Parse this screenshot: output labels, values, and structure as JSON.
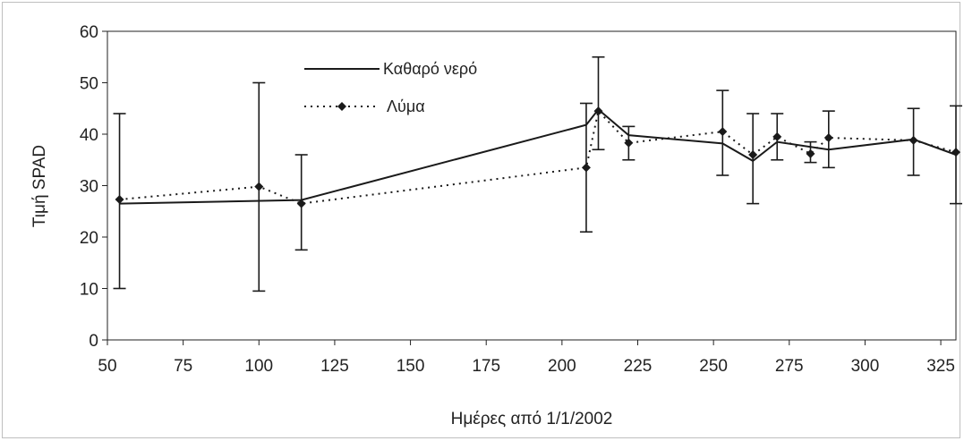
{
  "chart_data": {
    "type": "line",
    "title": "",
    "xlabel": "Ημέρες από 1/1/2002",
    "ylabel": "Τιμή SPAD",
    "xlim": [
      50,
      330
    ],
    "ylim": [
      0,
      60
    ],
    "x_ticks": [
      "50",
      "75",
      "100",
      "125",
      "150",
      "175",
      "200",
      "225",
      "250",
      "275",
      "300",
      "325"
    ],
    "y_ticks": [
      "0",
      "10",
      "20",
      "30",
      "40",
      "50",
      "60"
    ],
    "grid": false,
    "legend_position": "top-center",
    "series": [
      {
        "name": "Καθαρό νερό",
        "style": "solid",
        "color": "#1a1a1a",
        "x": [
          54,
          114,
          208,
          212,
          222,
          253,
          263,
          271,
          288,
          316,
          330
        ],
        "y": [
          26.5,
          27.2,
          41.8,
          44.8,
          39.8,
          38.2,
          34.8,
          38.5,
          37.0,
          39.0,
          36.0
        ]
      },
      {
        "name": "Λύμα",
        "style": "dotted",
        "marker": "diamond",
        "color": "#1a1a1a",
        "x": [
          54,
          100,
          114,
          208,
          212,
          222,
          253,
          263,
          271,
          282,
          288,
          316,
          330
        ],
        "y": [
          27.3,
          29.8,
          26.5,
          33.5,
          44.5,
          38.3,
          40.5,
          36.0,
          39.5,
          36.2,
          39.3,
          38.8,
          36.5
        ]
      }
    ],
    "error_bars": [
      {
        "x": 54,
        "low": 10,
        "high": 44
      },
      {
        "x": 100,
        "low": 9.5,
        "high": 50
      },
      {
        "x": 114,
        "low": 17.5,
        "high": 36
      },
      {
        "x": 208,
        "low": 21,
        "high": 46
      },
      {
        "x": 212,
        "low": 37,
        "high": 55
      },
      {
        "x": 222,
        "low": 35,
        "high": 41.5
      },
      {
        "x": 253,
        "low": 32,
        "high": 48.5
      },
      {
        "x": 263,
        "low": 26.5,
        "high": 44
      },
      {
        "x": 271,
        "low": 35,
        "high": 44
      },
      {
        "x": 282,
        "low": 34.5,
        "high": 38.5
      },
      {
        "x": 288,
        "low": 33.5,
        "high": 44.5
      },
      {
        "x": 316,
        "low": 32,
        "high": 45
      },
      {
        "x": 330,
        "low": 26.5,
        "high": 45.5
      }
    ]
  }
}
